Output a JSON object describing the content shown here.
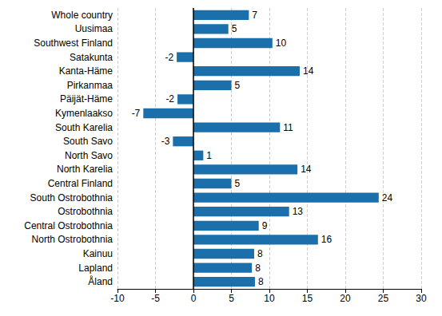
{
  "chart_data": {
    "type": "bar",
    "orientation": "horizontal",
    "categories": [
      "Whole country",
      "Uusimaa",
      "Southwest Finland",
      "Satakunta",
      "Kanta-Häme",
      "Pirkanmaa",
      "Päijät-Häme",
      "Kymenlaakso",
      "South Karelia",
      "South Savo",
      "North Savo",
      "North Karelia",
      "Central Finland",
      "South Ostrobothnia",
      "Ostrobothnia",
      "Central Ostrobothnia",
      "North Ostrobothnia",
      "Kainuu",
      "Lapland",
      "Åland"
    ],
    "values": [
      7.3,
      4.6,
      10.4,
      -2.2,
      14,
      5,
      -2.1,
      -6.6,
      11.4,
      -2.7,
      1.3,
      13.7,
      5,
      24.4,
      12.6,
      8.6,
      16.4,
      8,
      7.7,
      8.1
    ],
    "value_labels": [
      "7",
      "5",
      "10",
      "-2",
      "14",
      "5",
      "-2",
      "-7",
      "11",
      "-3",
      "1",
      "14",
      "5",
      "24",
      "13",
      "9",
      "16",
      "8",
      "8",
      "8"
    ],
    "color": "#1b6faa",
    "xlim": [
      -10,
      30
    ],
    "xticks": [
      -10,
      -5,
      0,
      5,
      10,
      15,
      20,
      25,
      30
    ],
    "grid": true,
    "data_labels": true
  }
}
